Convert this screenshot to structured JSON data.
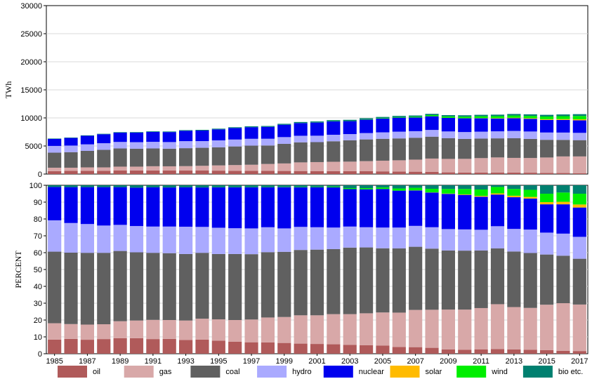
{
  "chart_data": [
    {
      "type": "bar",
      "stacked": true,
      "ylabel": "TWh",
      "ylim": [
        0,
        30000
      ],
      "y_ticks": [
        "0",
        "5000",
        "10000",
        "15000",
        "20000",
        "25000",
        "30000"
      ],
      "grid": true,
      "categories": [
        "1985",
        "1986",
        "1987",
        "1988",
        "1989",
        "1990",
        "1991",
        "1992",
        "1993",
        "1994",
        "1995",
        "1996",
        "1997",
        "1998",
        "1999",
        "2000",
        "2001",
        "2002",
        "2003",
        "2004",
        "2005",
        "2006",
        "2007",
        "2008",
        "2009",
        "2010",
        "2011",
        "2012",
        "2013",
        "2014",
        "2015",
        "2016",
        "2017"
      ],
      "series": [
        {
          "name": "oil",
          "color": "#b05a5a",
          "values": [
            520,
            560,
            570,
            590,
            630,
            640,
            640,
            640,
            620,
            630,
            610,
            580,
            560,
            560,
            550,
            540,
            530,
            520,
            510,
            500,
            480,
            450,
            420,
            380,
            300,
            260,
            260,
            280,
            260,
            240,
            200,
            180,
            160
          ]
        },
        {
          "name": "gas",
          "color": "#d8a8a8",
          "values": [
            610,
            570,
            620,
            600,
            690,
            680,
            750,
            740,
            790,
            840,
            930,
            1020,
            1100,
            1240,
            1340,
            1540,
            1600,
            1670,
            1700,
            1800,
            1900,
            2000,
            2150,
            2380,
            2400,
            2450,
            2580,
            2680,
            2620,
            2620,
            2750,
            2960,
            2980
          ]
        },
        {
          "name": "coal",
          "color": "#606060",
          "values": [
            2680,
            2770,
            2940,
            3120,
            3240,
            3190,
            3170,
            3140,
            3200,
            3210,
            3220,
            3320,
            3400,
            3290,
            3490,
            3570,
            3560,
            3650,
            3810,
            3870,
            3900,
            3900,
            3900,
            3900,
            3680,
            3550,
            3480,
            3400,
            3500,
            3400,
            3150,
            2950,
            2900
          ]
        },
        {
          "name": "hydro",
          "color": "#aaaaff",
          "values": [
            1200,
            1170,
            1160,
            1180,
            1160,
            1170,
            1180,
            1180,
            1250,
            1190,
            1240,
            1230,
            1220,
            1200,
            1200,
            1170,
            1140,
            1160,
            1100,
            1130,
            1150,
            1200,
            1170,
            1200,
            1210,
            1220,
            1230,
            1250,
            1300,
            1320,
            1300,
            1300,
            1300
          ]
        },
        {
          "name": "nuclear",
          "color": "#0000ee",
          "values": [
            1250,
            1360,
            1520,
            1600,
            1650,
            1700,
            1770,
            1780,
            1850,
            1880,
            1960,
            2050,
            2070,
            2120,
            2210,
            2270,
            2350,
            2400,
            2320,
            2400,
            2460,
            2500,
            2430,
            2430,
            2420,
            2450,
            2380,
            2280,
            2260,
            2260,
            2240,
            2250,
            2230
          ]
        },
        {
          "name": "solar",
          "color": "#ffbb00",
          "values": [
            0,
            0,
            0,
            0,
            0,
            0,
            0,
            0,
            0,
            0,
            0,
            0,
            0,
            0,
            0,
            0,
            0,
            0,
            0,
            0,
            0,
            0,
            0,
            10,
            10,
            20,
            40,
            70,
            90,
            110,
            130,
            150,
            180
          ]
        },
        {
          "name": "wind",
          "color": "#00ee00",
          "values": [
            0,
            0,
            0,
            0,
            0,
            0,
            0,
            0,
            0,
            0,
            5,
            10,
            10,
            10,
            10,
            20,
            30,
            40,
            50,
            70,
            90,
            110,
            150,
            200,
            250,
            280,
            330,
            360,
            400,
            410,
            480,
            520,
            600
          ]
        },
        {
          "name": "bio etc.",
          "color": "#008070",
          "values": [
            70,
            70,
            80,
            80,
            90,
            90,
            100,
            100,
            110,
            120,
            120,
            130,
            140,
            140,
            150,
            160,
            160,
            170,
            170,
            180,
            190,
            200,
            210,
            220,
            230,
            240,
            250,
            260,
            270,
            280,
            300,
            310,
            320
          ]
        }
      ]
    },
    {
      "type": "bar",
      "stacked": true,
      "ylabel": "PERCENT",
      "ylim": [
        0,
        100
      ],
      "y_ticks": [
        "0",
        "10",
        "20",
        "30",
        "40",
        "50",
        "60",
        "70",
        "80",
        "90",
        "100"
      ],
      "grid": true,
      "categories": [
        "1985",
        "1986",
        "1987",
        "1988",
        "1989",
        "1990",
        "1991",
        "1992",
        "1993",
        "1994",
        "1995",
        "1996",
        "1997",
        "1998",
        "1999",
        "2000",
        "2001",
        "2002",
        "2003",
        "2004",
        "2005",
        "2006",
        "2007",
        "2008",
        "2009",
        "2010",
        "2011",
        "2012",
        "2013",
        "2014",
        "2015",
        "2016",
        "2017"
      ],
      "x_tick_labels": [
        "1985",
        "1987",
        "1989",
        "1991",
        "1993",
        "1995",
        "1997",
        "1999",
        "2001",
        "2003",
        "2005",
        "2007",
        "2009",
        "2011",
        "2013",
        "2015",
        "2017"
      ],
      "series": [
        {
          "name": "oil",
          "color": "#b05a5a",
          "values": [
            8.4,
            8.8,
            8.3,
            8.7,
            9.2,
            9.2,
            8.7,
            8.8,
            8.2,
            8.4,
            7.7,
            7.1,
            6.8,
            6.7,
            6.4,
            6.0,
            5.8,
            5.6,
            5.3,
            5.1,
            4.8,
            4.0,
            3.9,
            3.5,
            2.6,
            2.4,
            2.5,
            2.8,
            2.6,
            2.4,
            2.1,
            1.7,
            1.6
          ]
        },
        {
          "name": "gas",
          "color": "#d8a8a8",
          "values": [
            9.7,
            8.8,
            9.0,
            8.8,
            10.1,
            10.5,
            11.4,
            11.2,
            11.5,
            12.4,
            12.7,
            12.9,
            13.5,
            14.8,
            15.4,
            16.8,
            17.0,
            17.9,
            18.2,
            18.9,
            19.7,
            20.4,
            22.1,
            22.6,
            23.6,
            23.8,
            24.6,
            26.6,
            25.1,
            24.8,
            27.0,
            28.3,
            27.6
          ]
        },
        {
          "name": "coal",
          "color": "#606060",
          "values": [
            42.5,
            42.4,
            42.6,
            42.4,
            41.7,
            40.5,
            39.8,
            39.7,
            39.5,
            39.1,
            38.8,
            39.2,
            38.8,
            38.8,
            38.7,
            38.8,
            39.0,
            38.6,
            39.5,
            39.1,
            38.1,
            38.1,
            37.5,
            36.3,
            35.1,
            35.0,
            34.2,
            33.1,
            33.0,
            32.6,
            29.8,
            28.2,
            27.2
          ]
        },
        {
          "name": "hydro",
          "color": "#aaaaff",
          "values": [
            18.6,
            17.6,
            17.1,
            16.2,
            15.5,
            15.6,
            15.6,
            15.8,
            16.2,
            15.4,
            15.6,
            15.3,
            15.3,
            14.8,
            13.9,
            13.7,
            13.3,
            12.8,
            12.5,
            12.0,
            12.3,
            12.4,
            12.4,
            12.7,
            12.7,
            12.6,
            12.3,
            13.2,
            13.4,
            13.9,
            13.0,
            13.1,
            13.0
          ]
        },
        {
          "name": "nuclear",
          "color": "#0000ee",
          "values": [
            19.8,
            21.3,
            21.9,
            22.8,
            22.4,
            22.8,
            23.3,
            23.2,
            23.4,
            23.4,
            24.0,
            24.3,
            24.4,
            23.7,
            24.5,
            23.5,
            23.8,
            23.9,
            22.2,
            22.5,
            22.9,
            21.9,
            21.0,
            20.6,
            20.9,
            20.5,
            19.6,
            18.8,
            18.8,
            18.4,
            16.8,
            17.4,
            17.4
          ]
        },
        {
          "name": "solar",
          "color": "#ffbb00",
          "values": [
            0,
            0,
            0,
            0,
            0,
            0,
            0,
            0,
            0,
            0,
            0,
            0,
            0,
            0,
            0,
            0,
            0,
            0,
            0,
            0,
            0,
            0,
            0.1,
            0.1,
            0.2,
            0.3,
            0.5,
            0.7,
            0.9,
            1.0,
            1.3,
            1.5,
            1.8
          ]
        },
        {
          "name": "wind",
          "color": "#00ee00",
          "values": [
            0,
            0,
            0,
            0,
            0,
            0,
            0,
            0,
            0,
            0,
            0.1,
            0.1,
            0.1,
            0.1,
            0.2,
            0.2,
            0.3,
            0.4,
            0.6,
            0.7,
            0.9,
            1.3,
            1.5,
            2.1,
            2.7,
            3.2,
            3.8,
            3.8,
            4.0,
            4.2,
            5.0,
            5.5,
            6.4
          ]
        },
        {
          "name": "bio etc.",
          "color": "#008070",
          "values": [
            1.0,
            1.1,
            1.1,
            1.1,
            1.1,
            1.4,
            1.2,
            1.3,
            1.2,
            1.3,
            1.1,
            1.1,
            1.1,
            1.1,
            0.9,
            1.0,
            0.8,
            0.8,
            1.7,
            1.7,
            1.3,
            1.9,
            1.5,
            2.1,
            2.2,
            2.2,
            2.5,
            1.0,
            2.2,
            2.7,
            5.0,
            4.3,
            5.0
          ]
        }
      ]
    }
  ],
  "legend": {
    "placement": "bottom",
    "items": [
      {
        "name": "oil",
        "color": "#b05a5a"
      },
      {
        "name": "gas",
        "color": "#d8a8a8"
      },
      {
        "name": "coal",
        "color": "#606060"
      },
      {
        "name": "hydro",
        "color": "#aaaaff"
      },
      {
        "name": "nuclear",
        "color": "#0000ee"
      },
      {
        "name": "solar",
        "color": "#ffbb00"
      },
      {
        "name": "wind",
        "color": "#00ee00"
      },
      {
        "name": "bio etc.",
        "color": "#008070"
      }
    ]
  }
}
